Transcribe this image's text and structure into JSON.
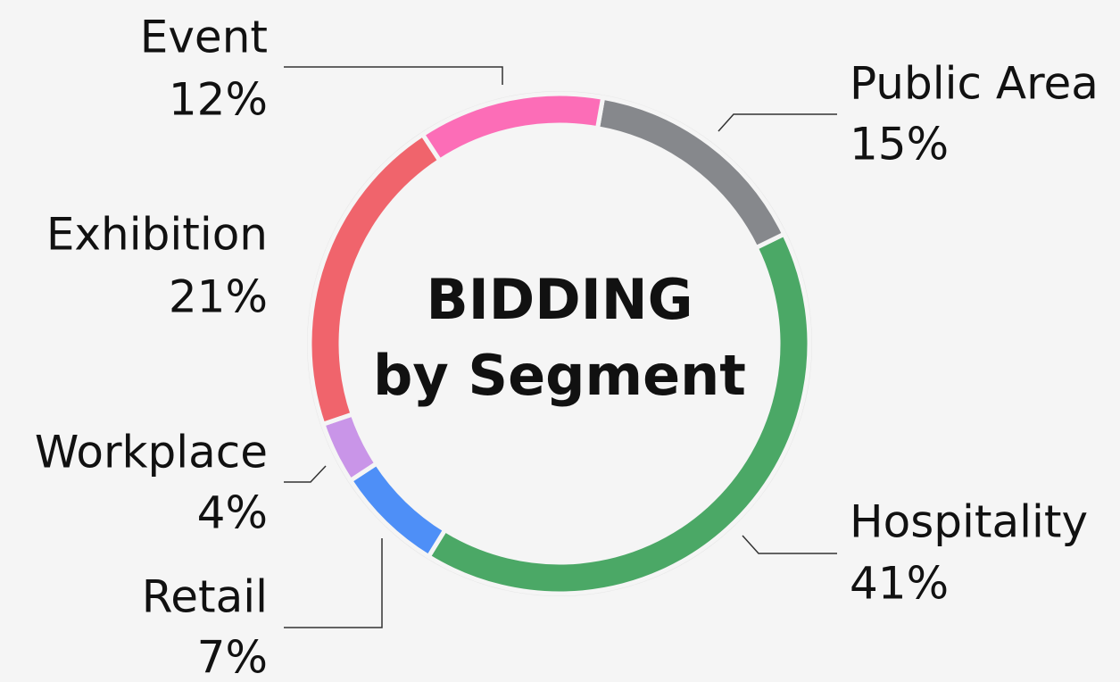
{
  "chart_data": {
    "type": "donut",
    "title": [
      "BIDDING",
      "by Segment"
    ],
    "categories": [
      "Public Area",
      "Hospitality",
      "Retail",
      "Workplace",
      "Exhibition",
      "Event"
    ],
    "values": [
      15,
      41,
      7,
      4,
      21,
      12
    ],
    "value_labels": [
      "15%",
      "41%",
      "7%",
      "4%",
      "21%",
      "12%"
    ],
    "colors": [
      "#86888c",
      "#4ba866",
      "#4e8ff7",
      "#c995e8",
      "#f0646c",
      "#fc6db7"
    ]
  }
}
